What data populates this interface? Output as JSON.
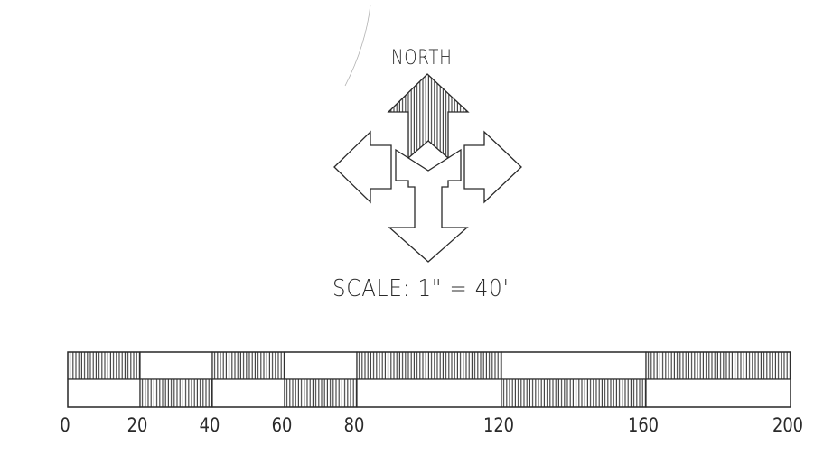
{
  "north_arrow": {
    "label": "NORTH",
    "arrows": [
      "north-arrow",
      "west-arrow",
      "east-arrow",
      "south-arrow"
    ]
  },
  "scale": {
    "text": "SCALE: 1\" = 40'",
    "range": [
      0,
      200
    ],
    "tick_labels": [
      "0",
      "20",
      "40",
      "60",
      "80",
      "120",
      "160",
      "200"
    ],
    "tick_values": [
      0,
      20,
      40,
      60,
      80,
      120,
      160,
      200
    ],
    "pattern_colors": {
      "hatch": "#3a3a3a",
      "fill": "#ffffff",
      "stroke": "#2a2a2a"
    },
    "segments": [
      {
        "from": 0,
        "to": 20,
        "top": "hatched",
        "bottom": "white"
      },
      {
        "from": 20,
        "to": 40,
        "top": "white",
        "bottom": "hatched"
      },
      {
        "from": 40,
        "to": 60,
        "top": "hatched",
        "bottom": "white"
      },
      {
        "from": 60,
        "to": 80,
        "top": "white",
        "bottom": "hatched"
      },
      {
        "from": 80,
        "to": 120,
        "top": "hatched",
        "bottom": "white"
      },
      {
        "from": 120,
        "to": 160,
        "top": "white",
        "bottom": "hatched"
      },
      {
        "from": 160,
        "to": 200,
        "top": "hatched",
        "bottom": "white"
      }
    ]
  }
}
